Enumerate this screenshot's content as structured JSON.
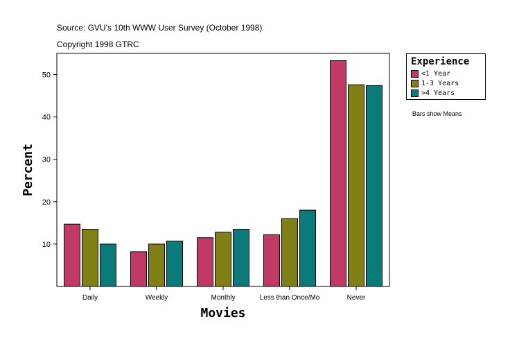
{
  "source_line": "Source: GVU's 10th WWW User Survey (October 1998)",
  "copyright_line": "Copyright 1998 GTRC",
  "note": "Bars show Means",
  "colors": {
    "lt1": "#c03a65",
    "y1to3": "#808015",
    "gt4": "#0b7a7a"
  },
  "chart_data": {
    "type": "bar",
    "categories": [
      "Daily",
      "Weekly",
      "Monthly",
      "Less than Once/Mo",
      "Never"
    ],
    "series": [
      {
        "name": "<1 Year",
        "values": [
          14.7,
          8.2,
          11.5,
          12.2,
          53.3
        ]
      },
      {
        "name": "1-3 Years",
        "values": [
          13.5,
          10.0,
          12.8,
          16.0,
          47.6
        ]
      },
      {
        "name": "> 4 Years",
        "values": [
          10.0,
          10.7,
          13.5,
          18.0,
          47.4
        ]
      }
    ],
    "legend_labels": [
      "<1 Year",
      "1-3 Years",
      ">4 Years"
    ],
    "legend_title": "Experience",
    "xlabel": "Movies",
    "ylabel": "Percent",
    "yticks": [
      10,
      20,
      30,
      40,
      50
    ],
    "ylim": [
      0,
      55
    ],
    "legend_position": "right",
    "grid": false
  }
}
